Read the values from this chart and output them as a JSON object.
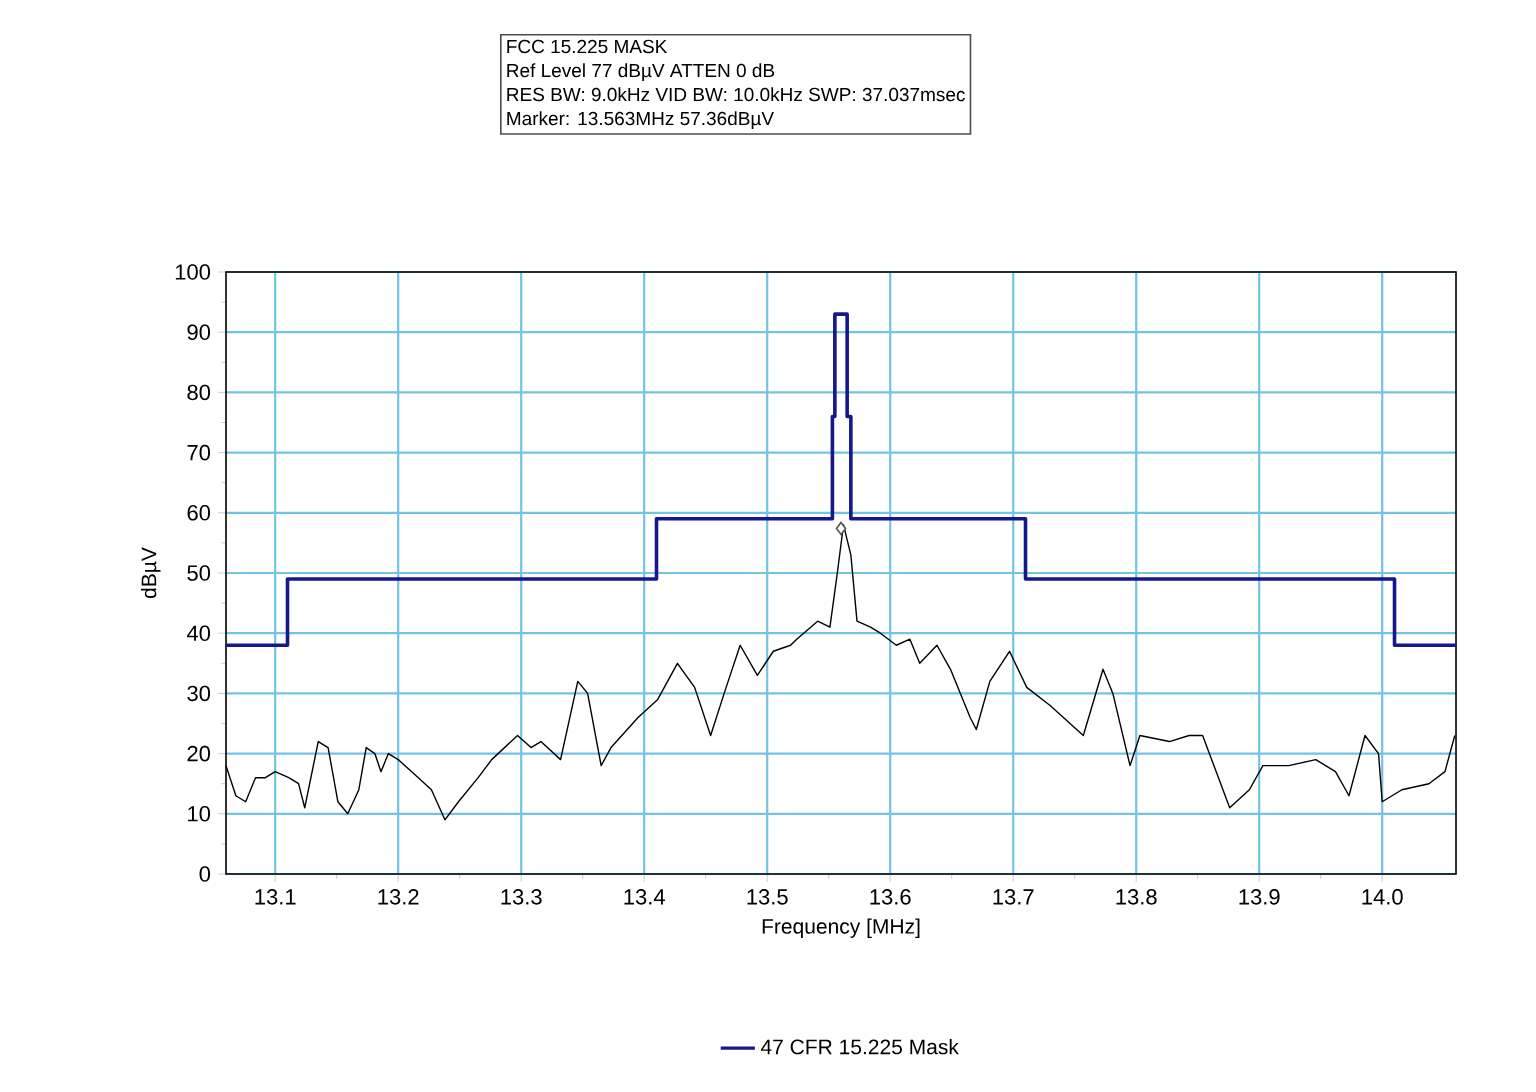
{
  "chart_data": {
    "type": "line",
    "title": "FCC 15.225 MASK",
    "annotations": [
      "Ref Level 77 dBµV    ATTEN 0 dB",
      "RES BW: 9.0kHz  VID BW: 10.0kHz  SWP: 37.037msec",
      "Marker: 13.563MHz  57.36dBµV"
    ],
    "xlabel": "Frequency [MHz]",
    "ylabel": "dBµV",
    "xlim": [
      13.06,
      14.06
    ],
    "ylim": [
      0,
      100
    ],
    "xticks": [
      13.1,
      13.2,
      13.3,
      13.4,
      13.5,
      13.6,
      13.7,
      13.8,
      13.9,
      {
        "value": 14.0,
        "label": "14.0"
      }
    ],
    "yticks": [
      0,
      10,
      20,
      30,
      40,
      50,
      60,
      70,
      80,
      90,
      100
    ],
    "grid": true,
    "legend": "bottom",
    "series": [
      {
        "name": "47 CFR 15.225 Mask",
        "color": "#16178a",
        "x": [
          13.06,
          13.11,
          13.11,
          13.41,
          13.41,
          13.553,
          13.553,
          13.555,
          13.555,
          13.565,
          13.565,
          13.568,
          13.568,
          13.71,
          13.71,
          14.01,
          14.01,
          14.06
        ],
        "values": [
          38,
          38,
          49,
          49,
          59,
          59,
          76,
          76,
          93,
          93,
          76,
          76,
          59,
          59,
          49,
          49,
          38,
          38
        ]
      },
      {
        "color": "#000000",
        "x": [
          13.06,
          13.068,
          13.076,
          13.084,
          13.092,
          13.1,
          13.111,
          13.119,
          13.124,
          13.135,
          13.143,
          13.151,
          13.159,
          13.168,
          13.174,
          13.181,
          13.186,
          13.192,
          13.2,
          13.211,
          13.227,
          13.238,
          13.249,
          13.265,
          13.276,
          13.297,
          13.308,
          13.316,
          13.332,
          13.346,
          13.354,
          13.365,
          13.373,
          13.395,
          13.411,
          13.427,
          13.441,
          13.454,
          13.465,
          13.478,
          13.492,
          13.505,
          13.519,
          13.524,
          13.541,
          13.551,
          13.557,
          13.562,
          13.568,
          13.573,
          13.584,
          13.592,
          13.605,
          13.616,
          13.624,
          13.638,
          13.649,
          13.665,
          13.67,
          13.681,
          13.697,
          13.711,
          13.73,
          13.757,
          13.773,
          13.781,
          13.795,
          13.803,
          13.827,
          13.843,
          13.854,
          13.876,
          13.892,
          13.903,
          13.924,
          13.946,
          13.962,
          13.973,
          13.986,
          13.997,
          14.0,
          14.016,
          14.038,
          14.051,
          14.059
        ],
        "values": [
          18,
          13,
          12,
          16,
          16,
          17,
          16,
          15,
          11,
          22,
          21,
          12,
          10,
          14,
          21,
          20,
          17,
          20,
          19,
          17,
          14,
          9,
          12,
          16,
          19,
          23,
          21,
          22,
          19,
          32,
          30,
          18,
          21,
          26,
          29,
          35,
          31,
          23,
          30,
          38,
          33,
          37,
          38,
          39,
          42,
          41,
          50,
          58,
          53,
          42,
          41,
          40,
          38,
          39,
          35,
          38,
          34,
          26,
          24,
          32,
          37,
          31,
          28,
          23,
          34,
          30,
          18,
          23,
          22,
          23,
          23,
          11,
          14,
          18,
          18,
          19,
          17,
          13,
          23,
          20,
          12,
          14,
          15,
          17,
          23
        ]
      },
      {
        "type": "scatter",
        "marker": "diamond",
        "color": "#555555",
        "x": [
          13.56
        ],
        "values": [
          57.4
        ]
      }
    ]
  }
}
